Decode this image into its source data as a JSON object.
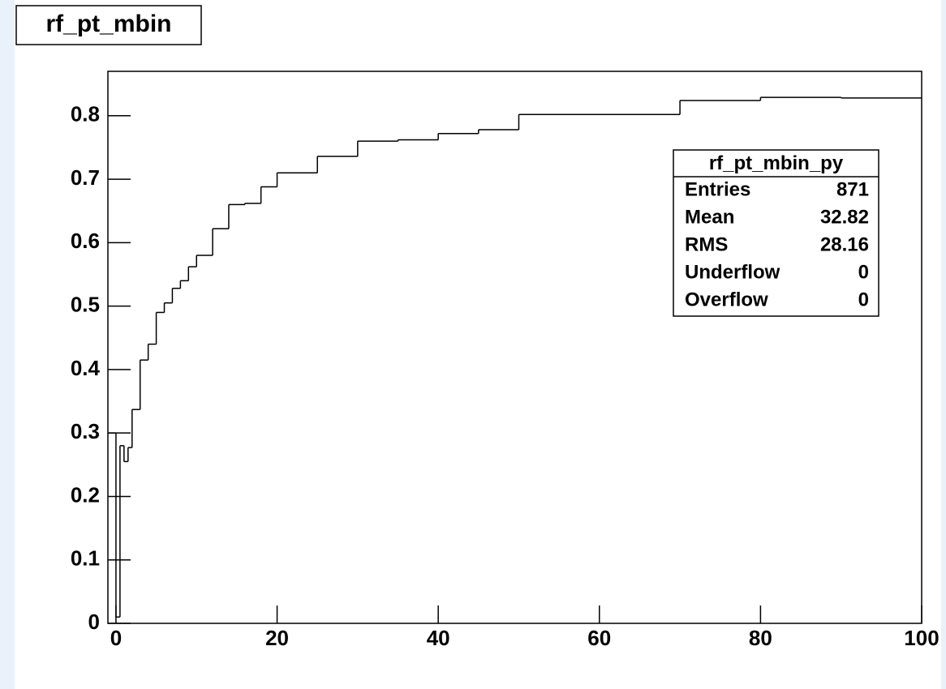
{
  "chart_data": {
    "type": "histogram",
    "title": "rf_pt_mbin",
    "bins": [
      -1,
      0,
      0.5,
      1,
      1.5,
      2,
      3,
      4,
      5,
      6,
      7,
      8,
      9,
      10,
      12,
      14,
      16,
      18,
      20,
      25,
      30,
      35,
      40,
      45,
      50,
      70,
      80,
      90,
      100
    ],
    "values": [
      0.3,
      0.01,
      0.28,
      0.255,
      0.277,
      0.337,
      0.415,
      0.44,
      0.49,
      0.505,
      0.528,
      0.54,
      0.562,
      0.58,
      0.622,
      0.66,
      0.662,
      0.688,
      0.71,
      0.736,
      0.76,
      0.762,
      0.772,
      0.778,
      0.802,
      0.824,
      0.829,
      0.828
    ],
    "color": "#000000",
    "xlim": [
      -1,
      100
    ],
    "xticks": [
      0,
      20,
      40,
      60,
      80,
      100
    ],
    "ylim": [
      0,
      0.87
    ],
    "yticks": [
      0,
      0.1,
      0.2,
      0.3,
      0.4,
      0.5,
      0.6,
      0.7,
      0.8
    ],
    "grid": false,
    "stats": {
      "title": "rf_pt_mbin_py",
      "rows": [
        [
          "Entries",
          871
        ],
        [
          "Mean",
          32.82
        ],
        [
          "RMS",
          28.16
        ],
        [
          "Underflow",
          0
        ],
        [
          "Overflow",
          0
        ]
      ]
    }
  }
}
